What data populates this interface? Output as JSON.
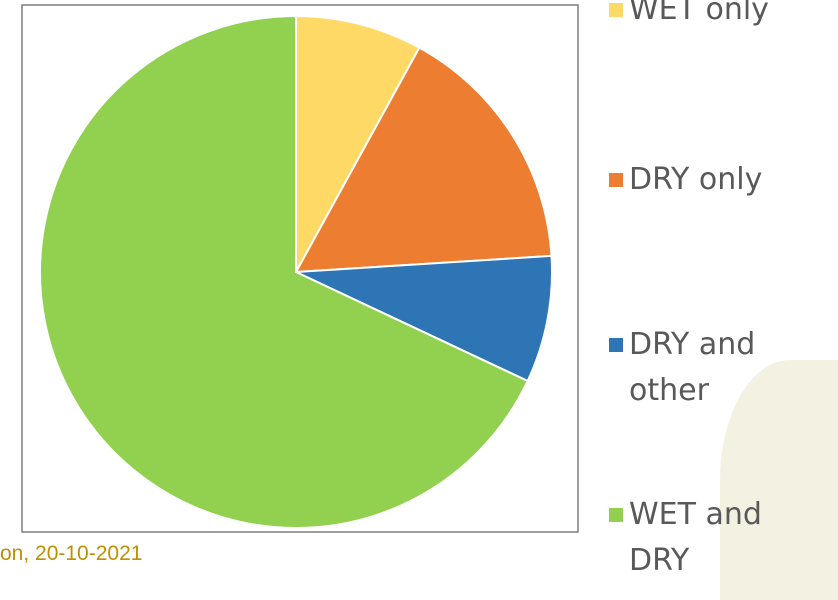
{
  "chart_data": {
    "type": "pie",
    "categories": [
      "WET only",
      "DRY only",
      "DRY and other",
      "WET and DRY"
    ],
    "values": [
      8,
      16,
      8,
      68
    ],
    "colors": [
      "#ffd966",
      "#ed7d31",
      "#2e75b6",
      "#92d050"
    ],
    "legend": "right"
  },
  "footer": "on, 20-10-2021"
}
